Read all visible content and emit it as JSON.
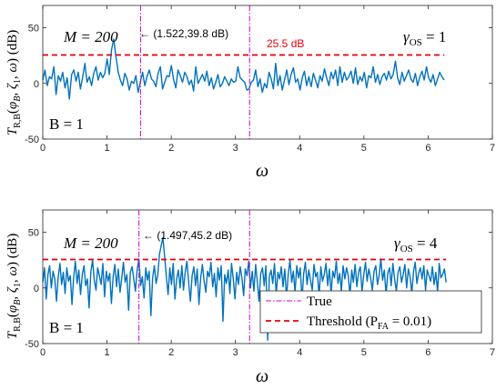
{
  "chart_data": [
    {
      "type": "line",
      "xlabel": "ω",
      "ylabel": "T_{R,B}(φ_B, ζ_1, ω) (dB)",
      "xlim": [
        0,
        7
      ],
      "ylim": [
        -50,
        70
      ],
      "xticks": [
        0,
        1,
        2,
        3,
        4,
        5,
        6,
        7
      ],
      "yticks": [
        -50,
        0,
        50
      ],
      "grid": false,
      "colors": {
        "signal": "#0072BD",
        "threshold": "#E8000B",
        "true": "#D000D0"
      },
      "threshold": 25.5,
      "threshold_label": "25.5 dB",
      "true_lines": [
        1.522,
        3.22
      ],
      "peak": {
        "x": 1.522,
        "y": 39.8,
        "label": "(1.522,39.8 dB)"
      },
      "labels": {
        "M": "M = 200",
        "gamma": "γOS = 1",
        "B": "B = 1"
      },
      "x_range": [
        0,
        6.25
      ],
      "series": [
        {
          "values": [
            3,
            12,
            -2,
            6,
            4,
            15,
            -10,
            7,
            2,
            10,
            -4,
            5,
            -14,
            8,
            12,
            2,
            10,
            -5,
            6,
            18,
            1,
            6,
            -2,
            9,
            15,
            3,
            10,
            5,
            9,
            22,
            8,
            30,
            39.8,
            24,
            10,
            3,
            -2,
            9,
            4,
            -6,
            2,
            0,
            7,
            -8,
            1,
            10,
            -2,
            6,
            12,
            4,
            2,
            -3,
            9,
            15,
            -5,
            1,
            7,
            6,
            16,
            3,
            -4,
            12,
            7,
            1,
            10,
            6,
            -1,
            3,
            -7,
            15,
            0,
            4,
            8,
            2,
            11,
            -2,
            5,
            -5,
            1,
            8,
            -3,
            0,
            6,
            2,
            -2,
            4,
            1,
            2,
            15,
            5,
            3,
            1,
            -6,
            -5,
            1,
            3,
            12,
            -3,
            4,
            -8,
            0,
            -4,
            10,
            4,
            -5,
            18,
            -2,
            7,
            -6,
            3,
            12,
            -1,
            8,
            14,
            1,
            4,
            -6,
            5,
            11,
            -2,
            6,
            -3,
            9,
            3,
            -4,
            7,
            2,
            13,
            5,
            -2,
            10,
            4,
            12,
            -2,
            15,
            1,
            10,
            3,
            6,
            11,
            0,
            14,
            -1,
            6,
            2,
            10,
            -4,
            7,
            5,
            15,
            1,
            8,
            -1,
            6,
            9,
            3,
            11,
            4,
            8,
            20,
            5,
            -1,
            10,
            2,
            7,
            12,
            4,
            1,
            9,
            -2,
            6,
            11,
            3,
            15,
            5,
            1,
            8,
            -2,
            4,
            10,
            6,
            3
          ]
        }
      ]
    },
    {
      "type": "line",
      "xlabel": "ω",
      "ylabel": "T_{R,B}(φ_B, ζ_1, ω) (dB)",
      "xlim": [
        0,
        7
      ],
      "ylim": [
        -50,
        70
      ],
      "xticks": [
        0,
        1,
        2,
        3,
        4,
        5,
        6,
        7
      ],
      "yticks": [
        -50,
        0,
        50
      ],
      "grid": false,
      "colors": {
        "signal": "#0072BD",
        "threshold": "#E8000B",
        "true": "#D000D0"
      },
      "threshold": 25.5,
      "true_lines": [
        1.497,
        3.22
      ],
      "peak": {
        "x": 1.497,
        "y": 45.2,
        "label": "(1.497,45.2 dB)"
      },
      "labels": {
        "M": "M = 200",
        "gamma": "γOS = 4",
        "B": "B = 1"
      },
      "legend": {
        "position": "bottom-right",
        "entries": [
          "True",
          "Threshold (PFA = 0.01)"
        ]
      },
      "x_range": [
        0,
        6.28
      ],
      "series": [
        {
          "values": [
            5,
            18,
            -10,
            12,
            20,
            0,
            15,
            8,
            -12,
            10,
            22,
            3,
            14,
            -5,
            18,
            6,
            11,
            -15,
            9,
            24,
            4,
            16,
            -6,
            12,
            20,
            2,
            8,
            -18,
            14,
            25,
            7,
            -2,
            18,
            11,
            3,
            22,
            -8,
            15,
            6,
            13,
            -14,
            10,
            21,
            1,
            17,
            -4,
            9,
            23,
            5,
            12,
            -20,
            14,
            19,
            8,
            -3,
            16,
            26,
            2,
            10,
            -9,
            18,
            7,
            15,
            -25,
            9,
            20,
            4,
            12,
            30,
            38,
            45.2,
            28,
            10,
            -6,
            18,
            3,
            22,
            -10,
            8,
            16,
            0,
            20,
            -2,
            14,
            24,
            5,
            -12,
            11,
            19,
            2,
            17,
            -15,
            9,
            21,
            6,
            -4,
            15,
            10,
            23,
            1,
            13,
            -8,
            18,
            7,
            20,
            -30,
            12,
            4,
            16,
            -5,
            22,
            8,
            -10,
            14,
            3,
            19,
            9,
            -7,
            17,
            11,
            24,
            0,
            15,
            -3,
            21,
            6,
            -12,
            13,
            18,
            2,
            20,
            -47,
            10,
            16,
            4,
            22,
            -6,
            14,
            8,
            19,
            1,
            17,
            -9,
            12,
            25,
            5,
            15,
            -4,
            20,
            9,
            18,
            -11,
            13,
            23,
            3,
            16,
            7,
            -2,
            21,
            10,
            14,
            -8,
            19,
            6,
            12,
            22,
            2,
            17,
            -5,
            15,
            9,
            24,
            4,
            13,
            -3,
            20,
            8,
            18,
            11,
            -7,
            16,
            5,
            21,
            1,
            14,
            19,
            -4,
            12,
            23,
            6,
            17,
            9,
            -2,
            15,
            20,
            3,
            11,
            26,
            7,
            16,
            -6,
            13,
            18,
            2,
            22,
            8,
            -3,
            14,
            19,
            5,
            12,
            21,
            0,
            17,
            10,
            -5,
            15,
            23,
            4,
            13,
            18,
            8,
            20,
            -2,
            16,
            11,
            6,
            19,
            3,
            14,
            -4,
            22,
            9,
            12,
            17,
            5
          ]
        }
      ]
    }
  ]
}
